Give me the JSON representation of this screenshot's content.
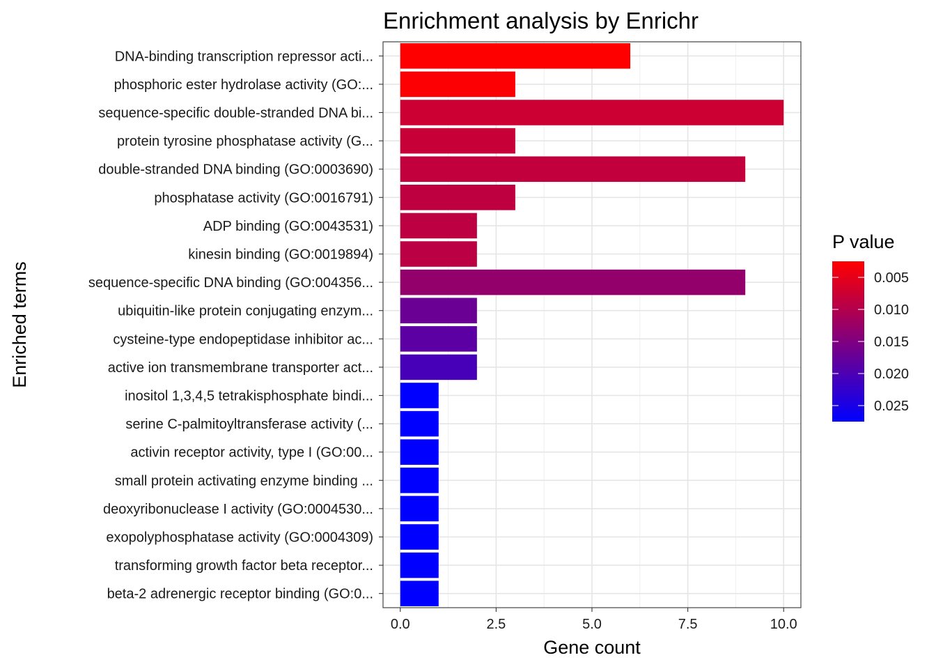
{
  "chart_data": {
    "type": "bar",
    "orientation": "horizontal",
    "title": "Enrichment analysis by Enrichr",
    "xlabel": "Gene count",
    "ylabel": "Enriched terms",
    "xlim": [
      -0.45,
      10.45
    ],
    "xticks": [
      0,
      2.5,
      5,
      7.5,
      10
    ],
    "xtick_labels": [
      "0.0",
      "2.5",
      "5.0",
      "7.5",
      "10.0"
    ],
    "grid": true,
    "categories": [
      "DNA-binding transcription repressor acti...",
      "phosphoric ester hydrolase activity (GO:...",
      "sequence-specific double-stranded DNA bi...",
      "protein tyrosine phosphatase activity (G...",
      "double-stranded DNA binding (GO:0003690)",
      "phosphatase activity (GO:0016791)",
      "ADP binding (GO:0043531)",
      "kinesin binding (GO:0019894)",
      "sequence-specific DNA binding (GO:004356...",
      "ubiquitin-like protein conjugating enzym...",
      "cysteine-type endopeptidase inhibitor ac...",
      "active ion transmembrane transporter act...",
      "inositol 1,3,4,5 tetrakisphosphate bindi...",
      "serine C-palmitoyltransferase activity (...",
      "activin receptor activity, type I (GO:00...",
      "small protein activating enzyme binding ...",
      "deoxyribonuclease I activity (GO:0004530...",
      "exopolyphosphatase activity (GO:0004309)",
      "transforming growth factor beta receptor...",
      "beta-2 adrenergic receptor binding (GO:0..."
    ],
    "values": [
      6,
      3,
      10,
      3,
      9,
      3,
      2,
      2,
      9,
      2,
      2,
      2,
      1,
      1,
      1,
      1,
      1,
      1,
      1,
      1
    ],
    "p_values": [
      0.0025,
      0.0028,
      0.0075,
      0.008,
      0.0085,
      0.0088,
      0.009,
      0.0092,
      0.013,
      0.017,
      0.0185,
      0.0205,
      0.0275,
      0.0275,
      0.0275,
      0.0275,
      0.0275,
      0.0275,
      0.0275,
      0.0275
    ],
    "legend": {
      "title": "P value",
      "position": "right",
      "min": 0.0025,
      "max": 0.0275,
      "color_low": "#FF0000",
      "color_high": "#0000FF",
      "ticks": [
        0.005,
        0.01,
        0.015,
        0.02,
        0.025
      ],
      "tick_labels": [
        "0.005",
        "0.010",
        "0.015",
        "0.020",
        "0.025"
      ]
    }
  }
}
